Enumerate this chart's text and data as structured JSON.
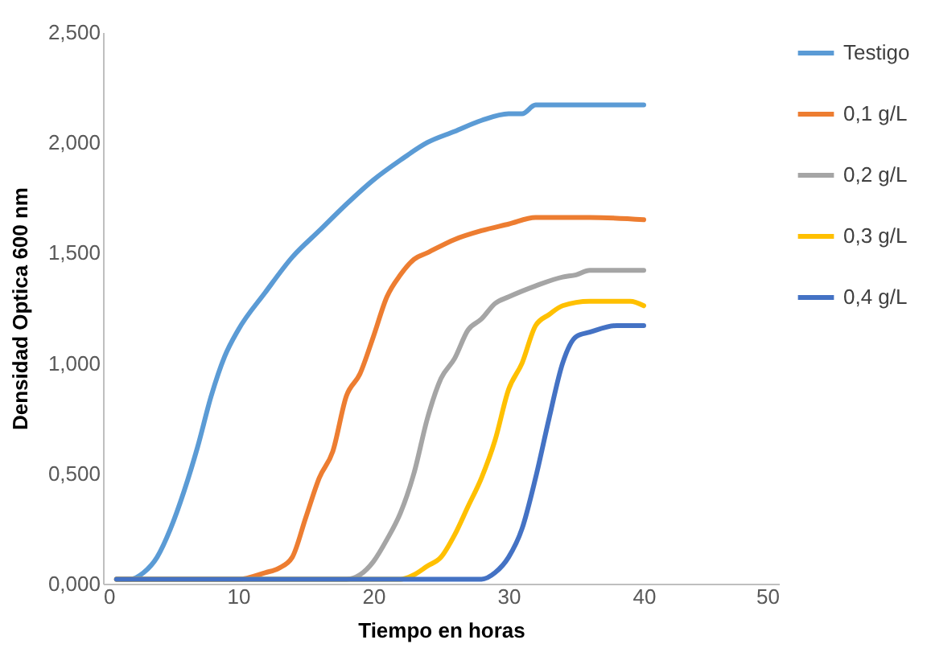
{
  "chart_data": {
    "type": "line",
    "xlabel": "Tiempo en horas",
    "ylabel": "Densidad Optica 600 nm",
    "xlim": [
      0,
      50
    ],
    "xticks": [
      0,
      10,
      20,
      30,
      40,
      50
    ],
    "ylim": [
      0,
      2.5
    ],
    "yticks": [
      {
        "value": 0,
        "label": "0,000"
      },
      {
        "value": 0.5,
        "label": "0,500"
      },
      {
        "value": 1,
        "label": "1,000"
      },
      {
        "value": 1.5,
        "label": "1,500"
      },
      {
        "value": 2,
        "label": "2,000"
      },
      {
        "value": 2.5,
        "label": "2,500"
      }
    ],
    "grid": false,
    "legend": "right",
    "marker": "none",
    "line_style": "solid",
    "series": [
      {
        "name": "Testigo",
        "color": "#5b9bd5",
        "x": [
          1,
          2,
          3,
          4,
          5,
          6,
          7,
          8,
          9,
          10,
          12,
          14,
          16,
          18,
          20,
          22,
          24,
          26,
          28,
          30,
          31,
          32,
          34,
          36,
          38,
          40
        ],
        "values": [
          0.02,
          0.02,
          0.05,
          0.12,
          0.25,
          0.42,
          0.62,
          0.85,
          1.03,
          1.15,
          1.32,
          1.48,
          1.6,
          1.72,
          1.83,
          1.92,
          2.0,
          2.05,
          2.1,
          2.13,
          2.13,
          2.17,
          2.17,
          2.17,
          2.17,
          2.17
        ]
      },
      {
        "name": "0,1 g/L",
        "color": "#ed7d31",
        "x": [
          1,
          10,
          12,
          13,
          14,
          15,
          16,
          17,
          18,
          19,
          20,
          21,
          22,
          23,
          24,
          26,
          28,
          30,
          32,
          36,
          40
        ],
        "values": [
          0.02,
          0.02,
          0.05,
          0.07,
          0.12,
          0.3,
          0.48,
          0.6,
          0.85,
          0.95,
          1.12,
          1.3,
          1.4,
          1.47,
          1.5,
          1.56,
          1.6,
          1.63,
          1.66,
          1.66,
          1.65
        ]
      },
      {
        "name": "0,2 g/L",
        "color": "#a5a5a5",
        "x": [
          1,
          18,
          19,
          20,
          21,
          22,
          23,
          24,
          25,
          26,
          27,
          28,
          29,
          30,
          32,
          34,
          35,
          36,
          40
        ],
        "values": [
          0.02,
          0.02,
          0.04,
          0.1,
          0.2,
          0.32,
          0.5,
          0.75,
          0.93,
          1.02,
          1.15,
          1.2,
          1.27,
          1.3,
          1.35,
          1.39,
          1.4,
          1.42,
          1.42
        ]
      },
      {
        "name": "0,3 g/L",
        "color": "#ffc000",
        "x": [
          1,
          22,
          23,
          24,
          25,
          26,
          27,
          28,
          29,
          30,
          31,
          32,
          33,
          34,
          36,
          38,
          39,
          40
        ],
        "values": [
          0.02,
          0.02,
          0.04,
          0.08,
          0.12,
          0.22,
          0.35,
          0.48,
          0.65,
          0.88,
          1.0,
          1.17,
          1.22,
          1.26,
          1.28,
          1.28,
          1.28,
          1.26
        ]
      },
      {
        "name": "0,4 g/L",
        "color": "#4472c4",
        "x": [
          1,
          28,
          29,
          30,
          31,
          32,
          33,
          34,
          35,
          36,
          38,
          40
        ],
        "values": [
          0.02,
          0.02,
          0.05,
          0.12,
          0.25,
          0.48,
          0.75,
          1.0,
          1.12,
          1.14,
          1.17,
          1.17
        ]
      }
    ]
  }
}
